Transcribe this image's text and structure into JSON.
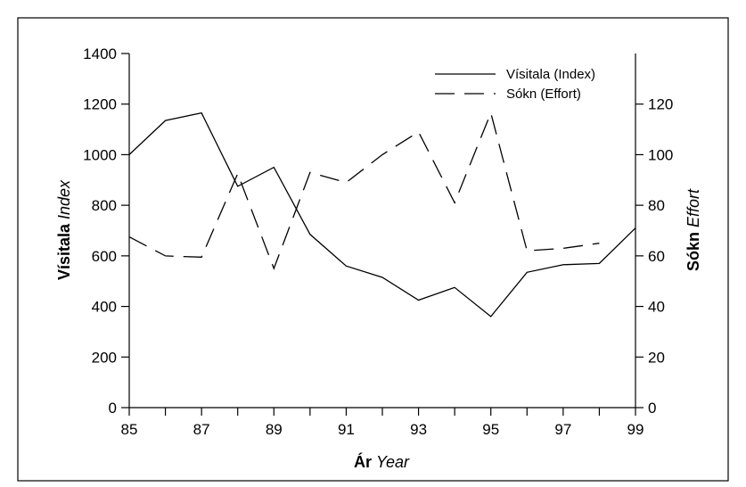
{
  "chart_data": {
    "type": "line",
    "x": [
      85,
      86,
      87,
      88,
      89,
      90,
      91,
      92,
      93,
      94,
      95,
      96,
      97,
      98,
      99
    ],
    "x_ticks": [
      "85",
      "87",
      "89",
      "91",
      "93",
      "95",
      "97",
      "99"
    ],
    "xlim": [
      85,
      99
    ],
    "xlabel": {
      "bold": "Ár",
      "italic": "Year"
    },
    "y_left": {
      "label": {
        "bold": "Vísitala",
        "italic": "Index"
      },
      "ylim": [
        0,
        1400
      ],
      "ticks": [
        "0",
        "200",
        "400",
        "600",
        "800",
        "1000",
        "1200",
        "1400"
      ]
    },
    "y_right": {
      "label": {
        "bold": "Sókn",
        "italic": "Effort"
      },
      "ylim": [
        0,
        140
      ],
      "ticks": [
        "0",
        "20",
        "40",
        "60",
        "80",
        "100",
        "120"
      ]
    },
    "series": [
      {
        "name": "Vísitala (Index)",
        "axis": "left",
        "style": "solid",
        "x": [
          85,
          86,
          87,
          88,
          89,
          90,
          91,
          92,
          93,
          94,
          95,
          96,
          97,
          98,
          99
        ],
        "values": [
          1000,
          1135,
          1165,
          875,
          950,
          685,
          560,
          515,
          425,
          475,
          360,
          535,
          565,
          570,
          710
        ]
      },
      {
        "name": "Sókn (Effort)",
        "axis": "right",
        "style": "dashed",
        "x": [
          85,
          86,
          87,
          88,
          89,
          90,
          91,
          92,
          93,
          94,
          95,
          96,
          97,
          98
        ],
        "values": [
          67.5,
          60,
          59.5,
          92.5,
          55,
          93,
          89,
          100,
          109,
          81,
          116.5,
          62,
          63,
          65
        ]
      }
    ],
    "legend": {
      "placement": "top-right"
    },
    "grid": false
  }
}
